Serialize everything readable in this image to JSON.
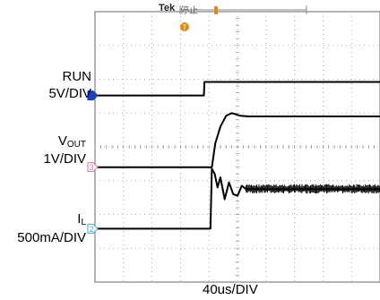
{
  "header": {
    "brand": "Tek",
    "status": "停止"
  },
  "channels": [
    {
      "label_main": "RUN",
      "label_sub": "",
      "scale": "5V/DIV",
      "marker_number": "",
      "marker_color": "#1f3fbf"
    },
    {
      "label_main": "V",
      "label_sub": "OUT",
      "scale": "1V/DIV",
      "marker_number": "3",
      "marker_color": "#c77bb8"
    },
    {
      "label_main": "I",
      "label_sub": "L",
      "scale": "500mA/DIV",
      "marker_number": "2",
      "marker_color": "#3fb0c0"
    }
  ],
  "trigger": {
    "marker": "T",
    "color": "#e08a1a"
  },
  "time_scale": "40us/DIV",
  "chart_data": {
    "type": "line",
    "x_unit_label": "40us/DIV",
    "x_divisions": 10,
    "y_divisions": 8,
    "grid": true,
    "series": [
      {
        "name": "RUN",
        "points": [
          [
            0.0,
            5.52
          ],
          [
            3.82,
            5.52
          ],
          [
            3.84,
            5.92
          ],
          [
            10.0,
            5.92
          ]
        ]
      },
      {
        "name": "VOUT",
        "points": [
          [
            0.0,
            3.4
          ],
          [
            4.1,
            3.4
          ],
          [
            4.22,
            4.1
          ],
          [
            4.4,
            4.6
          ],
          [
            4.6,
            4.92
          ],
          [
            4.8,
            5.0
          ],
          [
            5.1,
            4.92
          ],
          [
            5.4,
            4.9
          ],
          [
            10.0,
            4.9
          ]
        ]
      },
      {
        "name": "IL",
        "points": [
          [
            0.0,
            1.58
          ],
          [
            4.05,
            1.58
          ],
          [
            4.1,
            3.35
          ],
          [
            4.2,
            3.2
          ],
          [
            4.3,
            2.8
          ],
          [
            4.4,
            3.1
          ],
          [
            4.55,
            2.45
          ],
          [
            4.7,
            2.95
          ],
          [
            4.85,
            2.6
          ],
          [
            5.0,
            2.55
          ],
          [
            5.15,
            2.85
          ],
          [
            5.3,
            2.75
          ],
          [
            5.5,
            2.75
          ],
          [
            10.0,
            2.75
          ]
        ],
        "noisy_after_x": 5.3,
        "noise_band": [
          2.62,
          2.9
        ]
      }
    ]
  }
}
